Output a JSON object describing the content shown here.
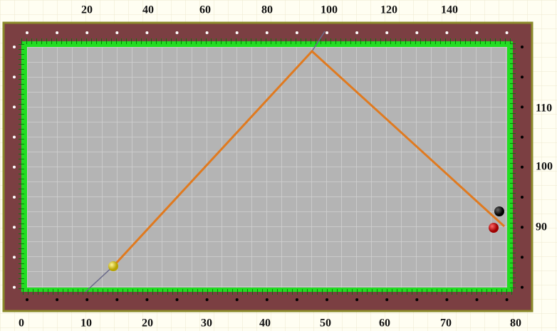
{
  "top_scale": [
    "20",
    "40",
    "60",
    "80",
    "100",
    "120",
    "140"
  ],
  "bottom_scale": [
    "0",
    "10",
    "20",
    "30",
    "40",
    "50",
    "60",
    "70",
    "80"
  ],
  "right_scale": [
    "110",
    "100",
    "90"
  ]
}
